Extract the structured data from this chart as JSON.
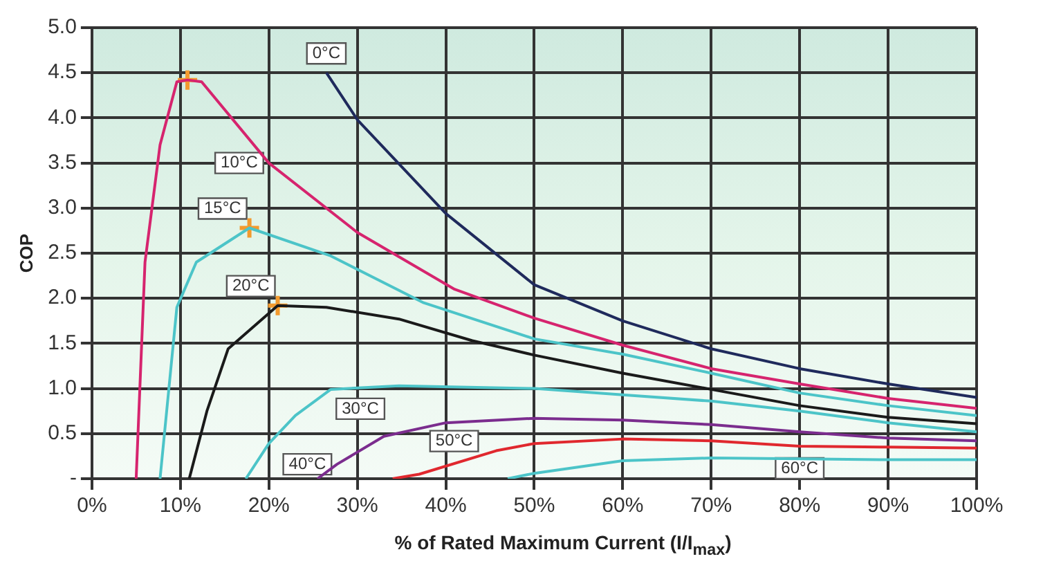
{
  "chart_data": {
    "type": "line",
    "xlabel": "% of Rated Maximum Current (I/I$_{max}$)",
    "ylabel": "COP",
    "xlim": [
      0,
      100
    ],
    "xticks": [
      {
        "value": 0,
        "label": "0%"
      },
      {
        "value": 10,
        "label": "10%"
      },
      {
        "value": 20,
        "label": "20%"
      },
      {
        "value": 30,
        "label": "30%"
      },
      {
        "value": 40,
        "label": "40%"
      },
      {
        "value": 50,
        "label": "50%"
      },
      {
        "value": 60,
        "label": "60%"
      },
      {
        "value": 70,
        "label": "70%"
      },
      {
        "value": 80,
        "label": "80%"
      },
      {
        "value": 90,
        "label": "90%"
      },
      {
        "value": 100,
        "label": "100%"
      }
    ],
    "ylim": [
      0,
      5
    ],
    "yticks": [
      {
        "value": 0,
        "label": "-"
      },
      0.5,
      {
        "value": 1,
        "label": "1.0"
      },
      1.5,
      {
        "value": 2,
        "label": "2.0"
      },
      2.5,
      {
        "value": 3,
        "label": "3.0"
      },
      3.5,
      {
        "value": 4,
        "label": "4.0"
      },
      4.5,
      {
        "value": 5,
        "label": "5.0"
      }
    ],
    "grid": true,
    "legend": false,
    "marker": "none",
    "line_style": "solid",
    "series": [
      {
        "name": "0°C",
        "color": "#1f2a5c",
        "x": [
          26.5,
          30,
          40,
          50,
          60,
          70,
          80,
          90,
          100
        ],
        "values": [
          4.5,
          3.98,
          2.94,
          2.15,
          1.75,
          1.44,
          1.22,
          1.05,
          0.9
        ]
      },
      {
        "name": "10°C",
        "color": "#d6246e",
        "x": [
          5,
          6,
          7.7,
          9.6,
          10.8,
          12.4,
          20,
          30,
          41,
          50,
          60,
          70,
          80,
          90,
          100
        ],
        "values": [
          0,
          2.4,
          3.7,
          4.4,
          4.42,
          4.4,
          3.5,
          2.73,
          2.1,
          1.78,
          1.48,
          1.22,
          1.05,
          0.89,
          0.78
        ]
      },
      {
        "name": "15°C",
        "color": "#4cc4c8",
        "x": [
          7.7,
          9.6,
          11.8,
          17.8,
          27,
          37.5,
          50,
          60,
          70,
          80,
          90,
          100
        ],
        "values": [
          0,
          1.9,
          2.4,
          2.78,
          2.47,
          1.95,
          1.55,
          1.38,
          1.17,
          0.95,
          0.81,
          0.7
        ]
      },
      {
        "name": "20°C",
        "color": "#1a1a1a",
        "x": [
          11,
          13,
          15.4,
          21,
          26.5,
          34.7,
          43,
          50,
          60,
          70,
          80,
          90,
          100
        ],
        "values": [
          0,
          0.75,
          1.44,
          1.92,
          1.9,
          1.77,
          1.53,
          1.37,
          1.17,
          0.99,
          0.81,
          0.68,
          0.61
        ]
      },
      {
        "name": "30°C",
        "color": "#4cc4c8",
        "x": [
          17.4,
          20,
          23,
          27,
          34.7,
          50,
          60,
          70,
          80,
          90,
          100
        ],
        "values": [
          0,
          0.39,
          0.7,
          0.99,
          1.03,
          1.0,
          0.93,
          0.86,
          0.75,
          0.62,
          0.52
        ]
      },
      {
        "name": "40°C",
        "color": "#7b2d8e",
        "x": [
          25.5,
          27.7,
          33,
          40,
          50,
          60,
          70,
          80,
          90,
          100
        ],
        "values": [
          0,
          0.16,
          0.47,
          0.62,
          0.67,
          0.65,
          0.6,
          0.52,
          0.45,
          0.42
        ]
      },
      {
        "name": "50°C",
        "color": "#e0282e",
        "x": [
          34,
          37,
          45.7,
          50,
          60,
          70,
          80,
          90,
          100
        ],
        "values": [
          0,
          0.05,
          0.31,
          0.39,
          0.44,
          0.42,
          0.36,
          0.35,
          0.34
        ]
      },
      {
        "name": "60°C",
        "color": "#4cc4c8",
        "x": [
          47,
          50,
          60,
          70,
          80,
          90,
          100
        ],
        "values": [
          0,
          0.06,
          0.2,
          0.23,
          0.22,
          0.21,
          0.21
        ]
      },
      {
        "type": "scatter",
        "marker": "cross",
        "color": "#f39a2e",
        "x": [
          10.8,
          17.8,
          21
        ],
        "values": [
          4.42,
          2.78,
          1.92
        ]
      }
    ]
  }
}
